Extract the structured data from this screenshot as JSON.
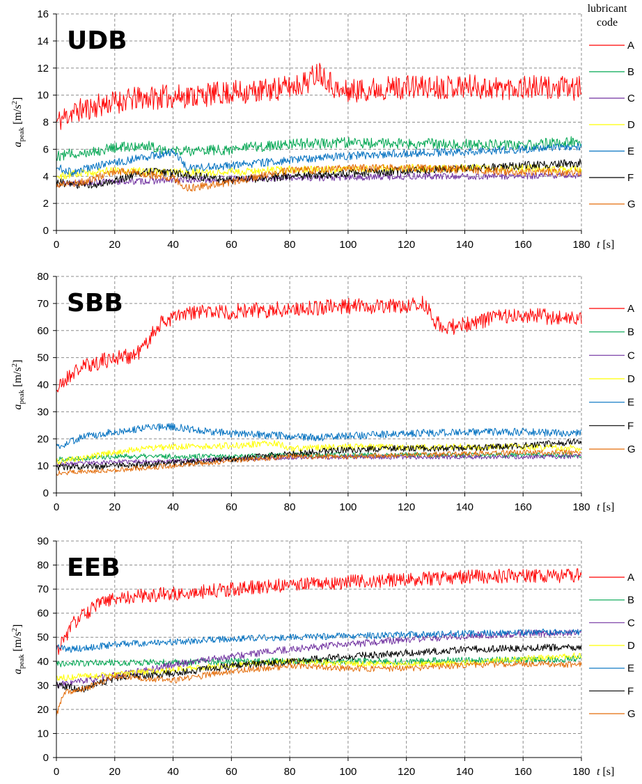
{
  "legend_header": [
    "lubricant",
    "code"
  ],
  "chart_data": [
    {
      "type": "line",
      "panel_label": "UDB",
      "x_axis": {
        "var": "t",
        "unit": "[s]",
        "lim": [
          0,
          180
        ],
        "ticks": [
          0,
          20,
          40,
          60,
          80,
          100,
          120,
          140,
          160,
          180
        ]
      },
      "y_axis": {
        "var": "a",
        "sub": "peak",
        "unit_pre": "[m/s",
        "unit_sup": "2",
        "unit_post": "]",
        "lim": [
          0,
          16
        ],
        "ticks": [
          0,
          2,
          4,
          6,
          8,
          10,
          12,
          14,
          16
        ]
      },
      "grid": true,
      "legend": "right",
      "series": [
        {
          "name": "A",
          "color": "#ff0000",
          "noise": 0.9,
          "seed": 11,
          "x": [
            0,
            5,
            10,
            20,
            30,
            40,
            50,
            60,
            70,
            80,
            86,
            90,
            93,
            97,
            100,
            110,
            120,
            130,
            140,
            150,
            160,
            170,
            180
          ],
          "y": [
            8.0,
            8.7,
            9.0,
            9.5,
            9.8,
            9.9,
            10.0,
            10.2,
            10.3,
            10.6,
            11.0,
            11.8,
            11.2,
            10.2,
            10.3,
            10.5,
            10.6,
            10.6,
            10.7,
            10.5,
            10.6,
            10.5,
            10.5
          ]
        },
        {
          "name": "B",
          "color": "#00a651",
          "noise": 0.4,
          "seed": 12,
          "x": [
            0,
            10,
            20,
            30,
            40,
            50,
            60,
            80,
            100,
            120,
            140,
            160,
            180
          ],
          "y": [
            5.5,
            5.8,
            6.1,
            6.3,
            5.9,
            5.9,
            6.0,
            6.4,
            6.5,
            6.4,
            6.4,
            6.3,
            6.6
          ]
        },
        {
          "name": "C",
          "color": "#7030a0",
          "noise": 0.25,
          "seed": 13,
          "x": [
            0,
            20,
            40,
            60,
            80,
            100,
            120,
            140,
            160,
            180
          ],
          "y": [
            3.5,
            3.6,
            3.7,
            3.8,
            3.9,
            3.9,
            4.0,
            4.0,
            4.0,
            4.1
          ]
        },
        {
          "name": "D",
          "color": "#ffff00",
          "noise": 0.3,
          "seed": 14,
          "x": [
            0,
            10,
            20,
            40,
            60,
            80,
            100,
            120,
            140,
            160,
            180
          ],
          "y": [
            4.0,
            4.3,
            4.4,
            4.3,
            4.3,
            4.5,
            4.5,
            4.6,
            4.6,
            4.6,
            4.5
          ]
        },
        {
          "name": "E",
          "color": "#0070c0",
          "noise": 0.3,
          "seed": 15,
          "x": [
            0,
            5,
            10,
            20,
            30,
            40,
            45,
            60,
            80,
            100,
            120,
            140,
            160,
            180
          ],
          "y": [
            4.7,
            4.3,
            4.6,
            5.0,
            5.4,
            5.8,
            4.6,
            4.8,
            5.2,
            5.5,
            5.7,
            5.8,
            6.0,
            6.2
          ]
        },
        {
          "name": "F",
          "color": "#000000",
          "noise": 0.3,
          "seed": 16,
          "x": [
            0,
            10,
            20,
            30,
            40,
            60,
            80,
            100,
            120,
            140,
            160,
            180
          ],
          "y": [
            3.6,
            3.3,
            3.6,
            4.4,
            4.2,
            3.7,
            4.0,
            4.2,
            4.4,
            4.6,
            4.8,
            5.0
          ]
        },
        {
          "name": "G",
          "color": "#e36c09",
          "noise": 0.3,
          "seed": 17,
          "x": [
            0,
            10,
            20,
            30,
            40,
            45,
            60,
            80,
            100,
            120,
            140,
            160,
            180
          ],
          "y": [
            3.4,
            3.6,
            4.4,
            4.2,
            3.9,
            3.1,
            3.6,
            4.4,
            4.6,
            4.6,
            4.5,
            4.3,
            4.3
          ]
        }
      ]
    },
    {
      "type": "line",
      "panel_label": "SBB",
      "x_axis": {
        "var": "t",
        "unit": "[s]",
        "lim": [
          0,
          180
        ],
        "ticks": [
          0,
          20,
          40,
          60,
          80,
          100,
          120,
          140,
          160,
          180
        ]
      },
      "y_axis": {
        "var": "a",
        "sub": "peak",
        "unit_pre": "[m/s",
        "unit_sup": "2",
        "unit_post": "]",
        "lim": [
          0,
          80
        ],
        "ticks": [
          0,
          10,
          20,
          30,
          40,
          50,
          60,
          70,
          80
        ]
      },
      "grid": true,
      "legend": "right",
      "series": [
        {
          "name": "A",
          "color": "#ff0000",
          "noise": 3.0,
          "seed": 21,
          "x": [
            0,
            5,
            10,
            20,
            27,
            30,
            35,
            40,
            50,
            60,
            80,
            100,
            120,
            126,
            130,
            133,
            140,
            150,
            160,
            180
          ],
          "y": [
            38,
            44,
            47,
            50,
            51,
            54,
            62,
            65,
            67,
            67,
            68,
            69,
            69,
            70,
            63,
            61,
            62,
            65,
            66,
            64
          ]
        },
        {
          "name": "B",
          "color": "#00a651",
          "noise": 1.0,
          "seed": 22,
          "x": [
            0,
            20,
            40,
            60,
            80,
            100,
            120,
            140,
            160,
            180
          ],
          "y": [
            12.5,
            13.5,
            13.5,
            13.5,
            14,
            14,
            14,
            14,
            14,
            14
          ]
        },
        {
          "name": "C",
          "color": "#7030a0",
          "noise": 0.8,
          "seed": 23,
          "x": [
            0,
            20,
            40,
            60,
            80,
            100,
            120,
            140,
            160,
            180
          ],
          "y": [
            10.5,
            11.5,
            11.8,
            12.5,
            13,
            13.2,
            13.3,
            13.3,
            13.3,
            13.5
          ]
        },
        {
          "name": "D",
          "color": "#ffff00",
          "noise": 1.2,
          "seed": 24,
          "x": [
            0,
            10,
            20,
            30,
            40,
            60,
            75,
            80,
            100,
            120,
            140,
            160,
            180
          ],
          "y": [
            11.5,
            13,
            15,
            16.5,
            17,
            17.5,
            18.5,
            16.5,
            17,
            17,
            17,
            17,
            16.5
          ]
        },
        {
          "name": "E",
          "color": "#0070c0",
          "noise": 1.4,
          "seed": 25,
          "x": [
            0,
            5,
            10,
            20,
            30,
            40,
            50,
            60,
            80,
            90,
            100,
            120,
            140,
            160,
            180
          ],
          "y": [
            17,
            19,
            21,
            22.5,
            24,
            24.5,
            23,
            22,
            21,
            20.5,
            21,
            22,
            22.5,
            22.5,
            22
          ]
        },
        {
          "name": "F",
          "color": "#000000",
          "noise": 1.2,
          "seed": 26,
          "x": [
            0,
            20,
            40,
            60,
            80,
            100,
            120,
            140,
            160,
            180
          ],
          "y": [
            9.5,
            10,
            11,
            12.5,
            14.5,
            16,
            16.5,
            16.5,
            17.5,
            19
          ]
        },
        {
          "name": "G",
          "color": "#e36c09",
          "noise": 1.0,
          "seed": 27,
          "x": [
            0,
            20,
            40,
            60,
            80,
            100,
            120,
            140,
            160,
            180
          ],
          "y": [
            7.5,
            8.5,
            10,
            12,
            13.5,
            13.5,
            14,
            14.5,
            15,
            15
          ]
        }
      ]
    },
    {
      "type": "line",
      "panel_label": "EEB",
      "x_axis": {
        "var": "t",
        "unit": "[s]",
        "lim": [
          0,
          180
        ],
        "ticks": [
          0,
          20,
          40,
          60,
          80,
          100,
          120,
          140,
          160,
          180
        ]
      },
      "y_axis": {
        "var": "a",
        "sub": "peak",
        "unit_pre": "[m/s",
        "unit_sup": "2",
        "unit_post": "]",
        "lim": [
          0,
          90
        ],
        "ticks": [
          0,
          10,
          20,
          30,
          40,
          50,
          60,
          70,
          80,
          90
        ]
      },
      "grid": true,
      "legend": "right",
      "series": [
        {
          "name": "A",
          "color": "#ff0000",
          "noise": 3.0,
          "seed": 31,
          "x": [
            0,
            3,
            6,
            10,
            15,
            20,
            30,
            40,
            50,
            60,
            80,
            100,
            120,
            140,
            160,
            180
          ],
          "y": [
            44,
            50,
            56,
            60,
            64,
            66,
            67.5,
            68,
            69,
            70,
            72,
            73,
            74,
            75,
            75.5,
            75.5
          ]
        },
        {
          "name": "B",
          "color": "#00a651",
          "noise": 1.4,
          "seed": 32,
          "x": [
            0,
            20,
            40,
            60,
            80,
            100,
            120,
            140,
            160,
            180
          ],
          "y": [
            39,
            39.5,
            39.5,
            40,
            40,
            40,
            40,
            40.5,
            40.5,
            41
          ]
        },
        {
          "name": "C",
          "color": "#7030a0",
          "noise": 1.5,
          "seed": 33,
          "x": [
            0,
            10,
            20,
            30,
            40,
            50,
            60,
            80,
            100,
            120,
            140,
            160,
            180
          ],
          "y": [
            30,
            32,
            34,
            36,
            38.5,
            40.5,
            42,
            45,
            47,
            49,
            50.5,
            51.5,
            52
          ]
        },
        {
          "name": "D",
          "color": "#ffff00",
          "noise": 1.3,
          "seed": 34,
          "x": [
            0,
            20,
            40,
            60,
            80,
            100,
            120,
            140,
            160,
            180
          ],
          "y": [
            33,
            34.5,
            36.5,
            38.5,
            40,
            39,
            38.5,
            39.5,
            41,
            42.5
          ]
        },
        {
          "name": "E",
          "color": "#0070c0",
          "noise": 1.4,
          "seed": 35,
          "x": [
            0,
            5,
            10,
            20,
            40,
            60,
            80,
            100,
            120,
            140,
            160,
            180
          ],
          "y": [
            46,
            45,
            45.5,
            47,
            48,
            49.5,
            50,
            50.5,
            51,
            51.5,
            52,
            52
          ]
        },
        {
          "name": "F",
          "color": "#000000",
          "noise": 1.5,
          "seed": 36,
          "x": [
            0,
            5,
            10,
            15,
            20,
            30,
            40,
            60,
            80,
            100,
            120,
            140,
            160,
            180
          ],
          "y": [
            30,
            29,
            28.5,
            31,
            33,
            34,
            35,
            38,
            40,
            42,
            43.5,
            45,
            45.5,
            46
          ]
        },
        {
          "name": "G",
          "color": "#e36c09",
          "noise": 1.3,
          "seed": 37,
          "x": [
            0,
            1,
            3,
            8,
            15,
            20,
            30,
            40,
            50,
            60,
            80,
            100,
            120,
            140,
            160,
            180
          ],
          "y": [
            17,
            22,
            27,
            28,
            31,
            34,
            33,
            32,
            34,
            36,
            38,
            37,
            37,
            38.5,
            39,
            38.5
          ]
        }
      ]
    }
  ]
}
